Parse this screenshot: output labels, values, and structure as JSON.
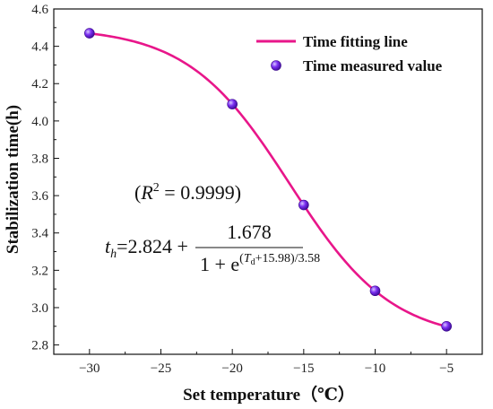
{
  "chart_data": {
    "type": "scatter",
    "xlabel": "Set temperature（℃）",
    "ylabel": "Stabilization time(h)",
    "xlim": [
      -32.5,
      -2.5
    ],
    "ylim": [
      2.75,
      4.6
    ],
    "xticks": [
      -30,
      -25,
      -20,
      -15,
      -10,
      -5
    ],
    "yticks": [
      2.8,
      3.0,
      3.2,
      3.4,
      3.6,
      3.8,
      4.0,
      4.2,
      4.4,
      4.6
    ],
    "grid": false,
    "legend_position": "top-right",
    "colors": {
      "fit_line": "#e8168a",
      "marker": "#7b2ff2"
    },
    "series": [
      {
        "name": "Time measured value",
        "type": "scatter",
        "x": [
          -30,
          -20,
          -15,
          -10,
          -5
        ],
        "y": [
          4.47,
          4.09,
          3.55,
          3.09,
          2.9
        ]
      },
      {
        "name": "Time fitting line",
        "type": "line",
        "model": {
          "a": 2.824,
          "b": 1.678,
          "c": 15.98,
          "d": 3.58
        },
        "x_range": [
          -30,
          -5
        ]
      }
    ],
    "annotations": {
      "r2": {
        "prefix": "(",
        "symbol": "R",
        "exponent": "2",
        "equals": " = 0.9999)"
      },
      "equation": {
        "lhs": "t",
        "lhs_sub": "h",
        "constant": "=2.824 +",
        "numerator": "1.678",
        "denominator_base": "1 + e",
        "exponent_open": "(",
        "exponent_var": "T",
        "exponent_sub": "d",
        "exponent_rest": "+15.98)/3.58"
      }
    }
  }
}
